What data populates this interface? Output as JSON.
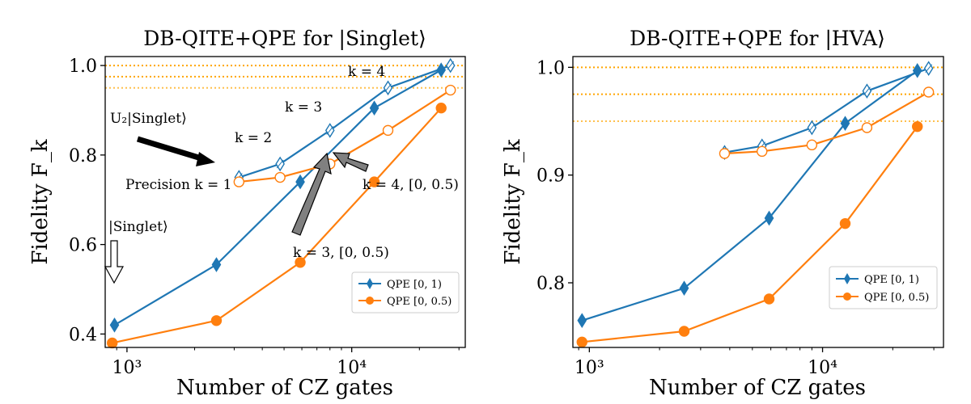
{
  "chart_data": [
    {
      "type": "line",
      "title": "DB-QITE+QPE for |Singlet⟩",
      "xlabel": "Number of CZ gates",
      "ylabel": "Fidelity F_k",
      "xscale": "log",
      "xlim": [
        800,
        32000
      ],
      "ylim": [
        0.37,
        1.02
      ],
      "yticks": [
        0.4,
        0.6,
        0.8,
        1.0
      ],
      "ytick_labels": [
        "0.4",
        "0.6",
        "0.8",
        "1.0"
      ],
      "xticks": [
        1000,
        10000
      ],
      "xtick_labels": [
        "10³",
        "10⁴"
      ],
      "hlines": [
        1.0,
        0.975,
        0.95
      ],
      "legend_position": "lower right",
      "series": [
        {
          "name": "QPE [0, 1)",
          "color": "#1f77b4",
          "marker": "diamond-filled",
          "x": [
            880,
            2500,
            5900,
            12600,
            25000
          ],
          "y": [
            0.42,
            0.555,
            0.74,
            0.905,
            0.99
          ]
        },
        {
          "name": "QPE [0, 0.5)",
          "color": "#ff7f0e",
          "marker": "circle-filled",
          "x": [
            860,
            2500,
            5900,
            12600,
            25000
          ],
          "y": [
            0.38,
            0.43,
            0.56,
            0.74,
            0.905
          ]
        },
        {
          "name": "",
          "color": "#1f77b4",
          "marker": "diamond-open",
          "x": [
            3150,
            4800,
            8000,
            14500,
            27500
          ],
          "y": [
            0.75,
            0.78,
            0.855,
            0.95,
            1.0
          ]
        },
        {
          "name": "",
          "color": "#ff7f0e",
          "marker": "circle-open",
          "x": [
            3150,
            4800,
            8000,
            14500,
            27500
          ],
          "y": [
            0.74,
            0.75,
            0.78,
            0.855,
            0.945
          ]
        }
      ],
      "annotations": [
        {
          "text": "k = 4",
          "x": 13000,
          "y": 0.985
        },
        {
          "text": "k = 3",
          "x": 6000,
          "y": 0.87
        },
        {
          "text": "k = 2",
          "x": 3200,
          "y": 0.795
        },
        {
          "text": "U₂|Singlet⟩",
          "x": 1000,
          "y": 0.905
        },
        {
          "text": "Precision k = 1",
          "x": 1480,
          "y": 0.72
        },
        {
          "text": "|Singlet⟩",
          "x": 880,
          "y": 0.59
        },
        {
          "text": "k = 4, [0, 0.5)",
          "x": 12800,
          "y": 0.71
        },
        {
          "text": "k = 3, [0, 0.5)",
          "x": 8100,
          "y": 0.495
        }
      ]
    },
    {
      "type": "line",
      "title": "DB-QITE+QPE for |HVA⟩",
      "xlabel": "Number of CZ gates",
      "ylabel": "Fidelity F_k",
      "xscale": "log",
      "xlim": [
        850,
        33000
      ],
      "ylim": [
        0.74,
        1.01
      ],
      "yticks": [
        0.8,
        0.9,
        1.0
      ],
      "ytick_labels": [
        "0.8",
        "0.9",
        "1.0"
      ],
      "xticks": [
        1000,
        10000
      ],
      "xtick_labels": [
        "10³",
        "10⁴"
      ],
      "hlines": [
        1.0,
        0.975,
        0.95
      ],
      "legend_position": "lower right",
      "series": [
        {
          "name": "QPE [0, 1)",
          "color": "#1f77b4",
          "marker": "diamond-filled",
          "x": [
            930,
            2550,
            5900,
            12500,
            25500
          ],
          "y": [
            0.765,
            0.795,
            0.86,
            0.948,
            0.997
          ]
        },
        {
          "name": "QPE [0, 0.5)",
          "color": "#ff7f0e",
          "marker": "circle-filled",
          "x": [
            930,
            2550,
            5900,
            12500,
            25500
          ],
          "y": [
            0.745,
            0.755,
            0.785,
            0.855,
            0.945
          ]
        },
        {
          "name": "",
          "color": "#1f77b4",
          "marker": "diamond-open",
          "x": [
            3800,
            5500,
            9000,
            15500,
            28500
          ],
          "y": [
            0.921,
            0.927,
            0.944,
            0.978,
            0.999
          ]
        },
        {
          "name": "",
          "color": "#ff7f0e",
          "marker": "circle-open",
          "x": [
            3800,
            5500,
            9000,
            15500,
            28500
          ],
          "y": [
            0.92,
            0.922,
            0.928,
            0.944,
            0.977
          ]
        }
      ],
      "annotations": []
    }
  ]
}
